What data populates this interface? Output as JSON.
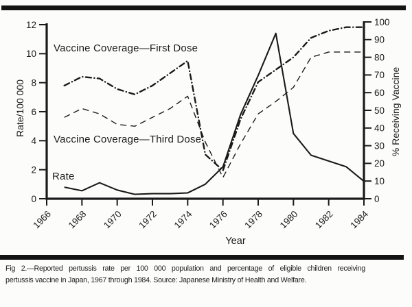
{
  "page": {
    "ink_color": "#1a1a1a",
    "background_color": "#fcfcfa"
  },
  "chart_data": {
    "type": "line",
    "xlabel": "Year",
    "ylabel_left": "Rate/100 000",
    "ylabel_right": "% Receiving Vaccine",
    "xlim": [
      1966,
      1984
    ],
    "ylim_left": [
      0,
      12
    ],
    "ylim_right": [
      0,
      100
    ],
    "x_tick_labels": [
      "1966",
      "1968",
      "1970",
      "1972",
      "1974",
      "1976",
      "1978",
      "1980",
      "1982",
      "1984"
    ],
    "left_axis_ticks": [
      0,
      2,
      4,
      6,
      8,
      10,
      12
    ],
    "right_axis_ticks": [
      0,
      10,
      20,
      30,
      40,
      50,
      60,
      70,
      80,
      90,
      100
    ],
    "grid": false,
    "legend_position": "labels drawn inside plot",
    "years": [
      1967,
      1968,
      1969,
      1970,
      1971,
      1972,
      1973,
      1974,
      1975,
      1976,
      1977,
      1978,
      1979,
      1980,
      1981,
      1982,
      1983,
      1984
    ],
    "series": [
      {
        "name": "Vaccine Coverage—First Dose",
        "axis": "right",
        "unit": "% receiving vaccine",
        "line_style": "bold-dash-dot",
        "values": [
          64,
          69,
          68,
          62,
          59,
          64,
          71,
          78,
          25,
          16,
          45,
          66,
          73,
          80,
          91,
          95,
          97,
          97
        ]
      },
      {
        "name": "Vaccine Coverage—Third Dose",
        "axis": "right",
        "unit": "% receiving vaccine",
        "line_style": "dashed",
        "values": [
          46,
          51,
          48,
          42,
          41,
          46,
          51,
          58,
          32,
          12,
          31,
          48,
          55,
          63,
          80,
          83,
          83,
          83
        ]
      },
      {
        "name": "Rate",
        "axis": "left",
        "unit": "rate per 100 000",
        "line_style": "solid",
        "values": [
          0.8,
          0.55,
          1.1,
          0.6,
          0.3,
          0.35,
          0.35,
          0.4,
          1.0,
          2.2,
          5.8,
          8.5,
          11.4,
          4.5,
          3.0,
          2.6,
          2.2,
          1.2
        ]
      }
    ]
  },
  "caption": {
    "line1": "Fig 2.—Reported pertussis rate per 100 000 population and percentage of eligible children receiving",
    "line2": "pertussis vaccine in Japan, 1967 through 1984. Source: Japanese Ministry of Health and Welfare."
  }
}
